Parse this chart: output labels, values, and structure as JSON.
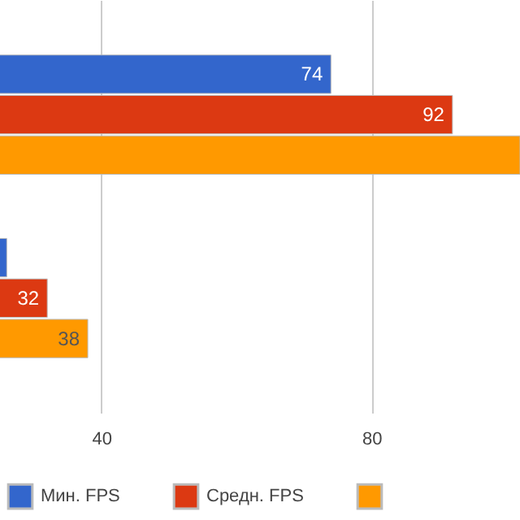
{
  "chart_data": {
    "type": "bar",
    "orientation": "horizontal",
    "categories": [
      null,
      null
    ],
    "series": [
      {
        "name": "Мин. FPS",
        "color": "#3366cc",
        "values": [
          74,
          26
        ],
        "value_labels": [
          "74",
          null
        ]
      },
      {
        "name": "Средн. FPS",
        "color": "#dc3912",
        "values": [
          92,
          32
        ],
        "value_labels": [
          "92",
          "32"
        ]
      },
      {
        "color": "#ff9900",
        "values": [
          102,
          38
        ],
        "value_labels": [
          null,
          "38"
        ]
      }
    ],
    "xlim": [
      25,
      102
    ],
    "xticks": [
      40,
      80
    ],
    "grid": "x",
    "legend": "bottom",
    "tick_labels": "x"
  }
}
